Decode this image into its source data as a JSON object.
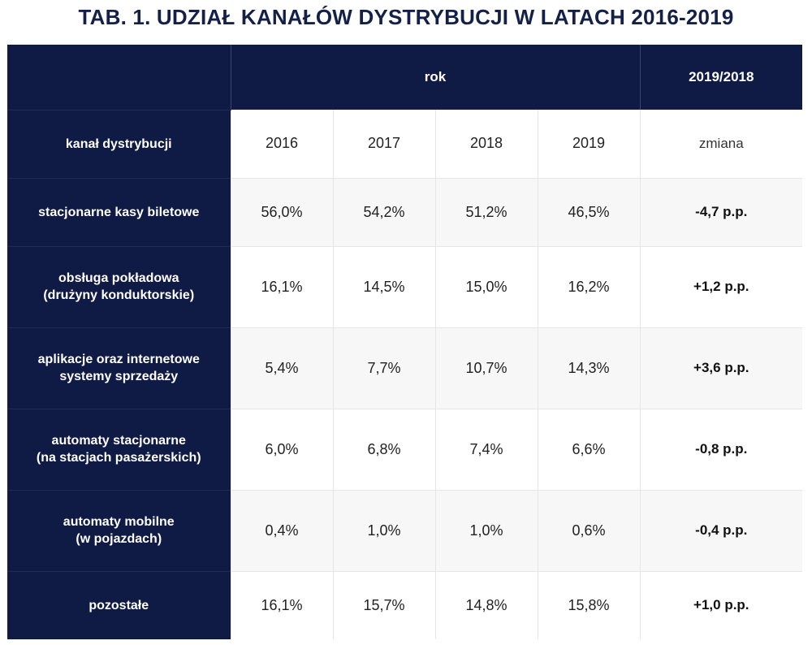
{
  "title": "TAB. 1.  UDZIAŁ KANAŁÓW DYSTRYBUCJI W LATACH 2016-2019",
  "header": {
    "group_label": "rok",
    "compare_label": "2019/2018"
  },
  "subheader": {
    "row_label": "kanał dystrybucji",
    "years": [
      "2016",
      "2017",
      "2018",
      "2019"
    ],
    "change_label": "zmiana"
  },
  "chart_data": {
    "type": "table",
    "title": "TAB. 1.  UDZIAŁ KANAŁÓW DYSTRYBUCJI W LATACH 2016-2019",
    "columns": [
      "kanał dystrybucji",
      "2016",
      "2017",
      "2018",
      "2019",
      "zmiana"
    ],
    "rows": [
      {
        "label": [
          "stacjonarne kasy biletowe"
        ],
        "values": [
          "56,0%",
          "54,2%",
          "51,2%",
          "46,5%"
        ],
        "change": "-4,7 p.p."
      },
      {
        "label": [
          "obsługa pokładowa",
          "(drużyny konduktorskie)"
        ],
        "values": [
          "16,1%",
          "14,5%",
          "15,0%",
          "16,2%"
        ],
        "change": "+1,2 p.p."
      },
      {
        "label": [
          "aplikacje oraz internetowe",
          "systemy sprzedaży"
        ],
        "values": [
          "5,4%",
          "7,7%",
          "10,7%",
          "14,3%"
        ],
        "change": "+3,6 p.p."
      },
      {
        "label": [
          "automaty stacjonarne",
          "(na stacjach pasażerskich)"
        ],
        "values": [
          "6,0%",
          "6,8%",
          "7,4%",
          "6,6%"
        ],
        "change": "-0,8 p.p."
      },
      {
        "label": [
          "automaty mobilne",
          "(w pojazdach)"
        ],
        "values": [
          "0,4%",
          "1,0%",
          "1,0%",
          "0,6%"
        ],
        "change": "-0,4 p.p."
      },
      {
        "label": [
          "pozostałe"
        ],
        "values": [
          "16,1%",
          "15,7%",
          "14,8%",
          "15,8%"
        ],
        "change": "+1,0 p.p."
      }
    ]
  },
  "colors": {
    "navy": "#0f1a45",
    "title": "#13204a",
    "stripe": "#f7f7f7"
  }
}
